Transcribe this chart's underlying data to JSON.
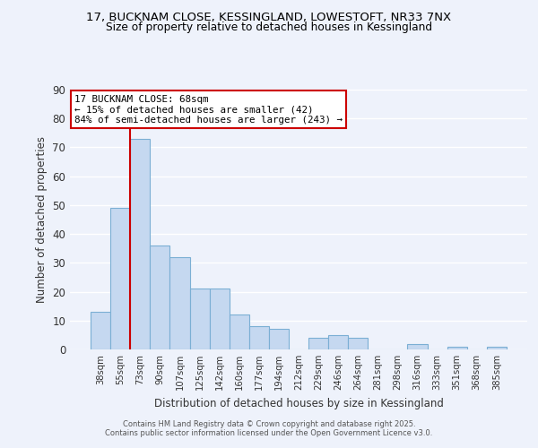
{
  "title1": "17, BUCKNAM CLOSE, KESSINGLAND, LOWESTOFT, NR33 7NX",
  "title2": "Size of property relative to detached houses in Kessingland",
  "xlabel": "Distribution of detached houses by size in Kessingland",
  "ylabel": "Number of detached properties",
  "bar_labels": [
    "38sqm",
    "55sqm",
    "73sqm",
    "90sqm",
    "107sqm",
    "125sqm",
    "142sqm",
    "160sqm",
    "177sqm",
    "194sqm",
    "212sqm",
    "229sqm",
    "246sqm",
    "264sqm",
    "281sqm",
    "298sqm",
    "316sqm",
    "333sqm",
    "351sqm",
    "368sqm",
    "385sqm"
  ],
  "bar_values": [
    13,
    49,
    73,
    36,
    32,
    21,
    21,
    12,
    8,
    7,
    0,
    4,
    5,
    4,
    0,
    0,
    2,
    0,
    1,
    0,
    1
  ],
  "bar_color": "#c5d8f0",
  "bar_edge_color": "#7bafd4",
  "ylim": [
    0,
    90
  ],
  "yticks": [
    0,
    10,
    20,
    30,
    40,
    50,
    60,
    70,
    80,
    90
  ],
  "vline_color": "#cc0000",
  "annotation_title": "17 BUCKNAM CLOSE: 68sqm",
  "annotation_line1": "← 15% of detached houses are smaller (42)",
  "annotation_line2": "84% of semi-detached houses are larger (243) →",
  "annotation_box_color": "#cc0000",
  "bg_color": "#eef2fb",
  "grid_color": "#ffffff",
  "footer1": "Contains HM Land Registry data © Crown copyright and database right 2025.",
  "footer2": "Contains public sector information licensed under the Open Government Licence v3.0."
}
